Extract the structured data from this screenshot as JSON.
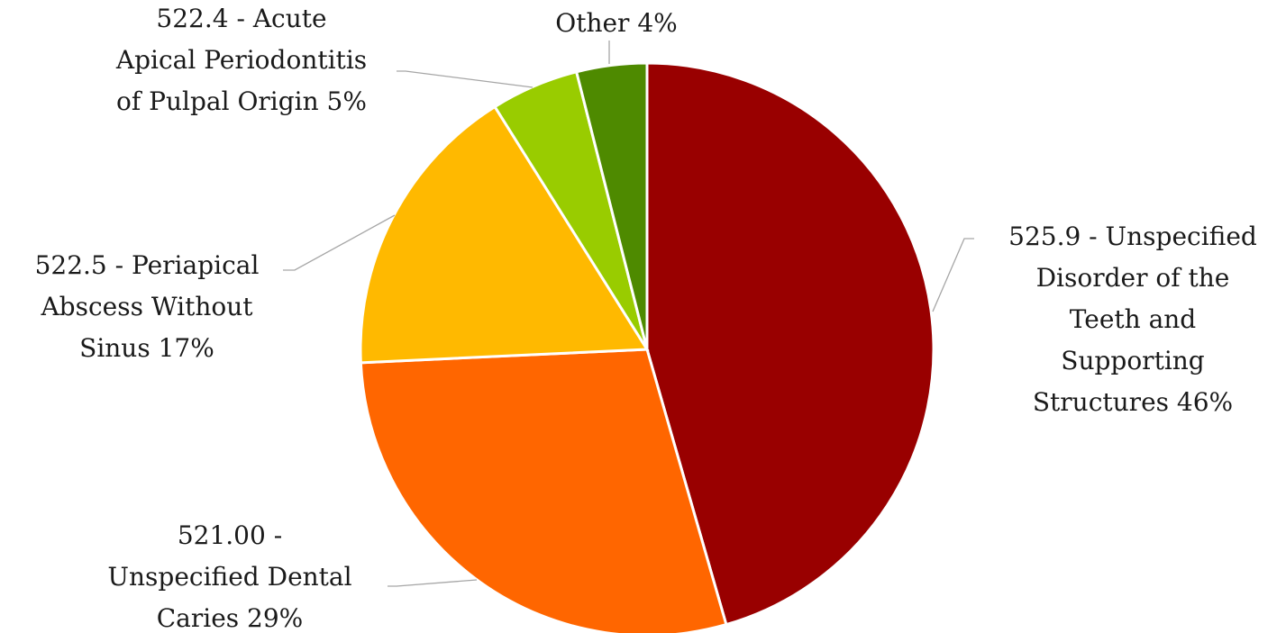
{
  "chart_data": {
    "type": "pie",
    "title": "",
    "start_angle_deg": 0,
    "direction": "clockwise",
    "slices": [
      {
        "label_lines": [
          "525.9 - Unspecified",
          "Disorder of the",
          "Teeth and",
          "Supporting",
          "Structures 46%"
        ],
        "value": 46,
        "color": "#990000"
      },
      {
        "label_lines": [
          "521.00 -",
          "Unspecified Dental",
          "Caries 29%"
        ],
        "value": 29,
        "color": "#FF6600"
      },
      {
        "label_lines": [
          "522.5 - Periapical",
          "Abscess Without",
          "Sinus 17%"
        ],
        "value": 17,
        "color": "#FFB900"
      },
      {
        "label_lines": [
          "522.4 - Acute",
          "Apical Periodontitis",
          "of Pulpal Origin 5%"
        ],
        "value": 5,
        "color": "#99CC00"
      },
      {
        "label_lines": [
          "Other 4%"
        ],
        "value": 4,
        "color": "#4E8A00"
      }
    ]
  }
}
